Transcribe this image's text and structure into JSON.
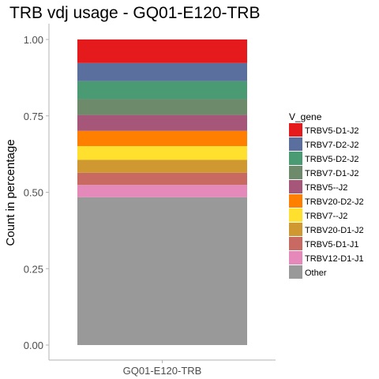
{
  "chart_data": {
    "type": "bar",
    "stacked": true,
    "title": "TRB vdj usage - GQ01-E120-TRB",
    "xlabel": "",
    "ylabel": "Count in percentage",
    "categories": [
      "GQ01-E120-TRB"
    ],
    "ylim": [
      0,
      1
    ],
    "yticks": [
      "0.00",
      "0.25",
      "0.50",
      "0.75",
      "1.00"
    ],
    "grid": false,
    "legend": {
      "title": "V_gene",
      "position": "right"
    },
    "series": [
      {
        "name": "TRBV5-D1-J2",
        "values": [
          0.077
        ],
        "color": "#E41A1C"
      },
      {
        "name": "TRBV7-D2-J2",
        "values": [
          0.059
        ],
        "color": "#5A6F9E"
      },
      {
        "name": "TRBV5-D2-J2",
        "values": [
          0.059
        ],
        "color": "#4A9A74"
      },
      {
        "name": "TRBV7-D1-J2",
        "values": [
          0.052
        ],
        "color": "#6D8B6B"
      },
      {
        "name": "TRBV5--J2",
        "values": [
          0.052
        ],
        "color": "#A65678"
      },
      {
        "name": "TRBV20-D2-J2",
        "values": [
          0.05
        ],
        "color": "#FF7F00"
      },
      {
        "name": "TRBV7--J2",
        "values": [
          0.045
        ],
        "color": "#FFE02F"
      },
      {
        "name": "TRBV20-D1-J2",
        "values": [
          0.042
        ],
        "color": "#CF9830"
      },
      {
        "name": "TRBV5-D1-J1",
        "values": [
          0.04
        ],
        "color": "#C96A62"
      },
      {
        "name": "TRBV12-D1-J1",
        "values": [
          0.04
        ],
        "color": "#E589BA"
      },
      {
        "name": "Other",
        "values": [
          0.484
        ],
        "color": "#999999"
      }
    ]
  }
}
